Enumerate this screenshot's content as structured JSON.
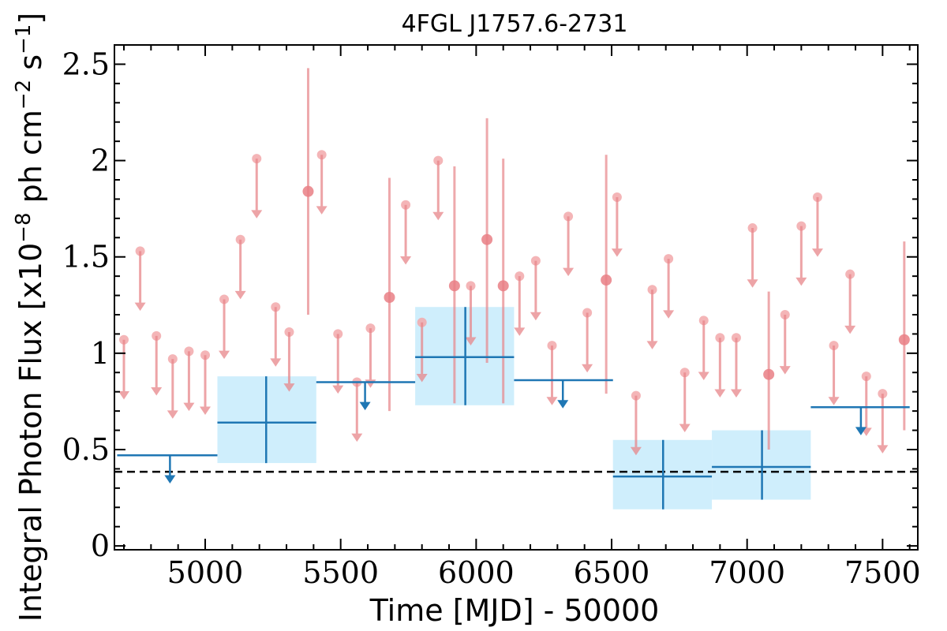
{
  "chart_data": {
    "type": "scatter",
    "title": "4FGL J1757.6-2731",
    "xlabel": "Time [MJD] - 50000",
    "ylabel": "Integral Photon Flux [x10",
    "ylabel_exp": "−8",
    "ylabel_unit": " ph cm",
    "ylabel_unit_exp": "−2",
    "ylabel_unit2": " s",
    "ylabel_unit2_exp": "−1",
    "ylabel_close": "]",
    "xlim": [
      4665,
      7630
    ],
    "ylim": [
      -0.02,
      2.6
    ],
    "xticks": [
      5000,
      5500,
      6000,
      6500,
      7000,
      7500
    ],
    "yticks": [
      0,
      0.5,
      1,
      1.5,
      2,
      2.5
    ],
    "ytick_labels": [
      "0",
      "0.5",
      "1",
      "1.5",
      "2",
      "2.5"
    ],
    "grid": false,
    "reference_line": {
      "y": 0.385,
      "style": "dashed",
      "color": "#000000"
    },
    "colors": {
      "fine": "#e8868a",
      "fine_face": "#f2a8aa",
      "coarse": "#1f77b4",
      "band": "#cfeefc"
    },
    "fine_bins": {
      "name": "",
      "upper_limits": [
        [
          4700,
          1.07
        ],
        [
          4760,
          1.53
        ],
        [
          4820,
          1.09
        ],
        [
          4880,
          0.97
        ],
        [
          4940,
          1.01
        ],
        [
          5000,
          0.99
        ],
        [
          5070,
          1.28
        ],
        [
          5130,
          1.59
        ],
        [
          5190,
          2.01
        ],
        [
          5260,
          1.24
        ],
        [
          5310,
          1.11
        ],
        [
          5430,
          2.03
        ],
        [
          5490,
          1.1
        ],
        [
          5560,
          0.85
        ],
        [
          5610,
          1.13
        ],
        [
          5740,
          1.77
        ],
        [
          5800,
          1.16
        ],
        [
          5860,
          2.0
        ],
        [
          5980,
          1.35
        ],
        [
          6160,
          1.4
        ],
        [
          6220,
          1.48
        ],
        [
          6280,
          1.04
        ],
        [
          6340,
          1.71
        ],
        [
          6410,
          1.21
        ],
        [
          6520,
          1.81
        ],
        [
          6590,
          0.78
        ],
        [
          6650,
          1.33
        ],
        [
          6710,
          1.49
        ],
        [
          6770,
          0.9
        ],
        [
          6840,
          1.17
        ],
        [
          6900,
          1.08
        ],
        [
          6960,
          1.08
        ],
        [
          7020,
          1.65
        ],
        [
          7140,
          1.2
        ],
        [
          7200,
          1.66
        ],
        [
          7260,
          1.81
        ],
        [
          7320,
          1.04
        ],
        [
          7380,
          1.41
        ],
        [
          7440,
          0.88
        ],
        [
          7500,
          0.79
        ]
      ],
      "detections": [
        {
          "x": 5380,
          "y": 1.84,
          "ylo": 1.2,
          "yhi": 2.48
        },
        {
          "x": 5680,
          "y": 1.29,
          "ylo": 0.7,
          "yhi": 1.91
        },
        {
          "x": 5920,
          "y": 1.35,
          "ylo": 0.74,
          "yhi": 1.97
        },
        {
          "x": 6040,
          "y": 1.59,
          "ylo": 0.95,
          "yhi": 2.22
        },
        {
          "x": 6100,
          "y": 1.35,
          "ylo": 0.74,
          "yhi": 2.01
        },
        {
          "x": 6480,
          "y": 1.38,
          "ylo": 0.79,
          "yhi": 2.03
        },
        {
          "x": 7080,
          "y": 0.89,
          "ylo": 0.5,
          "yhi": 1.32
        },
        {
          "x": 7580,
          "y": 1.07,
          "ylo": 0.6,
          "yhi": 1.58
        }
      ]
    },
    "coarse_bins": {
      "name": "",
      "upper_limits": [
        {
          "x0": 4675,
          "x1": 5045,
          "x": 4870,
          "y": 0.47
        },
        {
          "x0": 5410,
          "x1": 5775,
          "x": 5590,
          "y": 0.85
        },
        {
          "x0": 6140,
          "x1": 6505,
          "x": 6320,
          "y": 0.86
        },
        {
          "x0": 7235,
          "x1": 7600,
          "x": 7420,
          "y": 0.72
        }
      ],
      "detections": [
        {
          "x0": 5045,
          "x1": 5410,
          "x": 5225,
          "y": 0.64,
          "ylo": 0.43,
          "yhi": 0.88
        },
        {
          "x0": 5775,
          "x1": 6140,
          "x": 5960,
          "y": 0.98,
          "ylo": 0.73,
          "yhi": 1.24
        },
        {
          "x0": 6505,
          "x1": 6870,
          "x": 6690,
          "y": 0.36,
          "ylo": 0.19,
          "yhi": 0.55
        },
        {
          "x0": 6870,
          "x1": 7235,
          "x": 7055,
          "y": 0.41,
          "ylo": 0.24,
          "yhi": 0.6
        }
      ]
    }
  }
}
